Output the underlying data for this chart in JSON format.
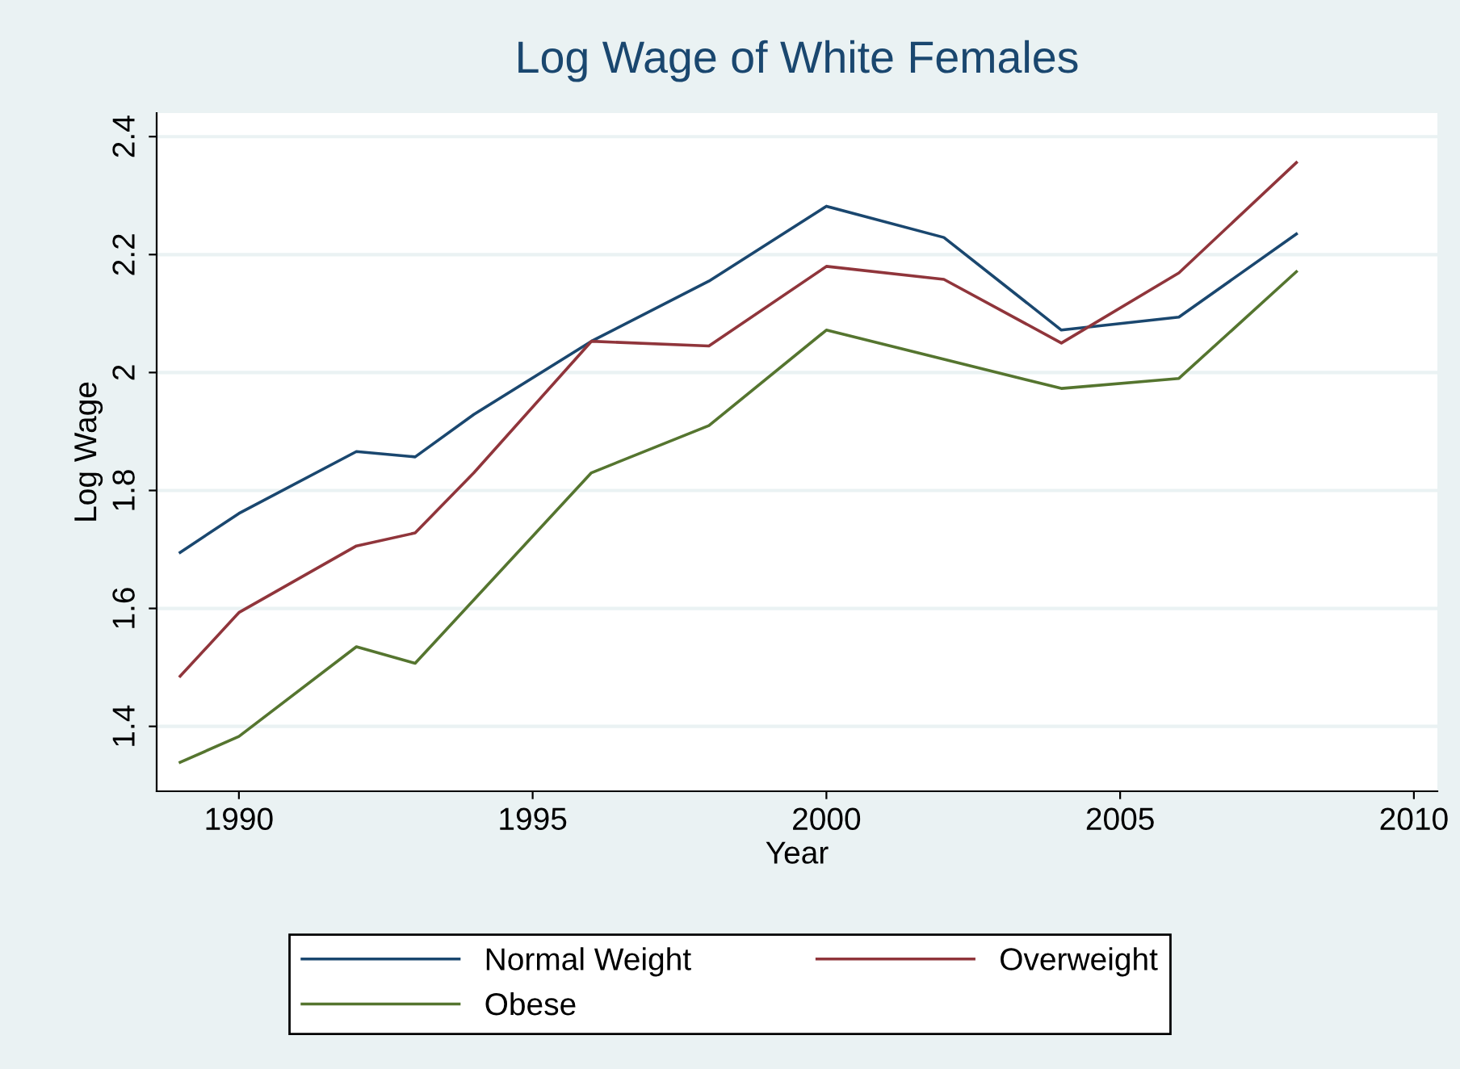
{
  "chart_data": {
    "type": "line",
    "title": "Log Wage of White Females",
    "xlabel": "Year",
    "ylabel": "Log Wage",
    "xlim": [
      1988.6,
      2010.4
    ],
    "xticks": [
      1990,
      1995,
      2000,
      2005,
      2010
    ],
    "ylim": [
      1.29,
      2.44
    ],
    "yticks": [
      1.4,
      1.6,
      1.8,
      2,
      2.2,
      2.4
    ],
    "grid": "y",
    "legend": "bottom",
    "line_style": "solid",
    "marker": "none",
    "series": [
      {
        "name": "Normal Weight",
        "color": "#1a476f",
        "x": [
          1989,
          1990,
          1992,
          1993,
          1994,
          1996,
          1998,
          2000,
          2002,
          2004,
          2006,
          2008
        ],
        "values": [
          1.695,
          1.761,
          1.866,
          1.857,
          1.929,
          2.053,
          2.155,
          2.282,
          2.229,
          2.072,
          2.094,
          2.235
        ]
      },
      {
        "name": "Overweight",
        "color": "#90353b",
        "x": [
          1989,
          1990,
          1992,
          1993,
          1994,
          1996,
          1998,
          2000,
          2002,
          2004,
          2006,
          2008
        ],
        "values": [
          1.485,
          1.593,
          1.706,
          1.728,
          1.83,
          2.053,
          2.045,
          2.18,
          2.158,
          2.05,
          2.169,
          2.356
        ]
      },
      {
        "name": "Obese",
        "color": "#55752f",
        "x": [
          1989,
          1990,
          1992,
          1993,
          1996,
          1998,
          2000,
          2004,
          2006,
          2008
        ],
        "values": [
          1.339,
          1.383,
          1.535,
          1.507,
          1.83,
          1.91,
          2.072,
          1.973,
          1.99,
          2.171
        ]
      }
    ]
  }
}
